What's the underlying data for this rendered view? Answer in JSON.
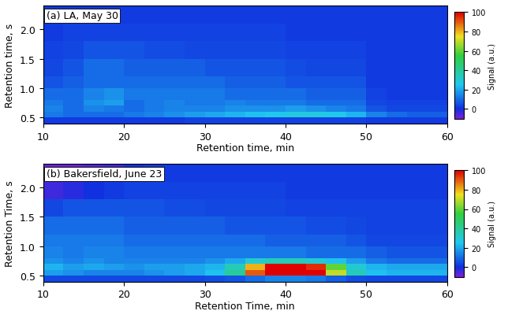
{
  "chart_data": [
    {
      "type": "heatmap",
      "annotation": "(a) LA, May 30",
      "xlabel": "Retention time, min",
      "ylabel": "Retention time, s",
      "x_edges": [
        10,
        12.5,
        15,
        17.5,
        20,
        22.5,
        25,
        27.5,
        30,
        32.5,
        35,
        37.5,
        40,
        42.5,
        45,
        47.5,
        50,
        52.5,
        55,
        57.5,
        60
      ],
      "y_edges": [
        0.4,
        0.5,
        0.6,
        0.7,
        0.8,
        1.0,
        1.2,
        1.5,
        1.8,
        2.1,
        2.4
      ],
      "cells": [
        [
          2,
          2,
          2,
          2,
          2,
          2,
          2,
          3,
          3,
          3,
          3,
          3,
          3,
          3,
          3,
          3,
          2,
          2,
          2,
          2
        ],
        [
          12,
          10,
          10,
          10,
          12,
          14,
          16,
          18,
          20,
          22,
          24,
          26,
          28,
          28,
          26,
          22,
          14,
          10,
          8,
          8
        ],
        [
          14,
          10,
          14,
          12,
          10,
          12,
          14,
          14,
          14,
          16,
          16,
          16,
          18,
          16,
          14,
          12,
          6,
          4,
          4,
          4
        ],
        [
          12,
          10,
          16,
          18,
          10,
          12,
          14,
          12,
          12,
          14,
          12,
          12,
          12,
          10,
          10,
          10,
          4,
          3,
          3,
          3
        ],
        [
          10,
          10,
          14,
          16,
          12,
          12,
          12,
          12,
          12,
          10,
          10,
          10,
          10,
          8,
          8,
          8,
          3,
          2,
          2,
          2
        ],
        [
          6,
          8,
          10,
          10,
          10,
          10,
          10,
          10,
          10,
          8,
          8,
          8,
          6,
          6,
          6,
          6,
          2,
          2,
          2,
          2
        ],
        [
          4,
          6,
          10,
          10,
          8,
          8,
          8,
          8,
          6,
          6,
          6,
          6,
          5,
          4,
          4,
          4,
          2,
          2,
          2,
          2
        ],
        [
          3,
          4,
          6,
          6,
          6,
          5,
          5,
          4,
          4,
          4,
          4,
          4,
          3,
          3,
          3,
          3,
          2,
          2,
          2,
          2
        ],
        [
          2,
          3,
          3,
          3,
          3,
          3,
          3,
          3,
          3,
          3,
          3,
          3,
          2,
          2,
          2,
          2,
          2,
          2,
          2,
          2
        ],
        [
          2,
          2,
          2,
          2,
          2,
          2,
          2,
          2,
          2,
          2,
          2,
          2,
          2,
          2,
          2,
          2,
          2,
          2,
          2,
          2
        ]
      ],
      "xlim": [
        10,
        60
      ],
      "xticks": [
        10,
        20,
        30,
        40,
        50,
        60
      ],
      "ylim": [
        0.4,
        2.4
      ],
      "yticks": [
        0.5,
        {
          "value": 1.0,
          "label": "1.0"
        },
        1.5,
        {
          "value": 2.0,
          "label": "2.0"
        }
      ],
      "colorbar_label": "Signal (a.u.)",
      "colorbar_range": [
        -10,
        100
      ],
      "colorbar_ticks": [
        0,
        20,
        40,
        60,
        80,
        100
      ]
    },
    {
      "type": "heatmap",
      "annotation": "(b) Bakersfield, June 23",
      "xlabel": "Retention Time, min",
      "ylabel": "Retention Time, s",
      "x_edges": [
        10,
        12.5,
        15,
        17.5,
        20,
        22.5,
        25,
        27.5,
        30,
        32.5,
        35,
        37.5,
        40,
        42.5,
        45,
        47.5,
        50,
        52.5,
        55,
        57.5,
        60
      ],
      "y_edges": [
        0.4,
        0.5,
        0.6,
        0.7,
        0.8,
        1.0,
        1.2,
        1.5,
        1.8,
        2.1,
        2.4
      ],
      "cells": [
        [
          4,
          4,
          4,
          4,
          4,
          4,
          4,
          4,
          5,
          6,
          10,
          14,
          14,
          12,
          8,
          5,
          4,
          4,
          4,
          4
        ],
        [
          18,
          16,
          14,
          14,
          14,
          16,
          18,
          20,
          24,
          40,
          90,
          100,
          100,
          100,
          70,
          35,
          24,
          22,
          22,
          22
        ],
        [
          22,
          18,
          20,
          18,
          16,
          18,
          18,
          20,
          22,
          35,
          80,
          100,
          100,
          95,
          60,
          30,
          22,
          20,
          20,
          20
        ],
        [
          16,
          14,
          16,
          14,
          14,
          14,
          14,
          14,
          16,
          20,
          30,
          35,
          35,
          30,
          24,
          18,
          12,
          10,
          10,
          10
        ],
        [
          14,
          12,
          14,
          14,
          12,
          12,
          12,
          12,
          12,
          12,
          12,
          12,
          12,
          10,
          10,
          10,
          8,
          6,
          6,
          6
        ],
        [
          12,
          12,
          12,
          12,
          10,
          10,
          10,
          10,
          10,
          10,
          10,
          8,
          8,
          8,
          8,
          6,
          4,
          4,
          4,
          4
        ],
        [
          10,
          10,
          10,
          10,
          8,
          8,
          8,
          8,
          8,
          6,
          6,
          6,
          6,
          5,
          5,
          4,
          3,
          3,
          3,
          3
        ],
        [
          4,
          6,
          6,
          6,
          6,
          6,
          5,
          5,
          4,
          4,
          4,
          4,
          3,
          3,
          3,
          3,
          3,
          3,
          3,
          3
        ],
        [
          -4,
          -2,
          0,
          2,
          3,
          3,
          3,
          3,
          3,
          3,
          3,
          3,
          2,
          2,
          2,
          2,
          2,
          2,
          2,
          2
        ],
        [
          -8,
          -8,
          -6,
          -4,
          0,
          2,
          2,
          2,
          2,
          2,
          2,
          2,
          2,
          2,
          2,
          2,
          2,
          2,
          2,
          2
        ]
      ],
      "xlim": [
        10,
        60
      ],
      "xticks": [
        10,
        20,
        30,
        40,
        50,
        60
      ],
      "ylim": [
        0.4,
        2.4
      ],
      "yticks": [
        0.5,
        {
          "value": 1.0,
          "label": "1.0"
        },
        1.5,
        {
          "value": 2.0,
          "label": "2.0"
        }
      ],
      "colorbar_label": "Signal (a.u.)",
      "colorbar_range": [
        -10,
        100
      ],
      "colorbar_ticks": [
        0,
        20,
        40,
        60,
        80,
        100
      ]
    }
  ]
}
